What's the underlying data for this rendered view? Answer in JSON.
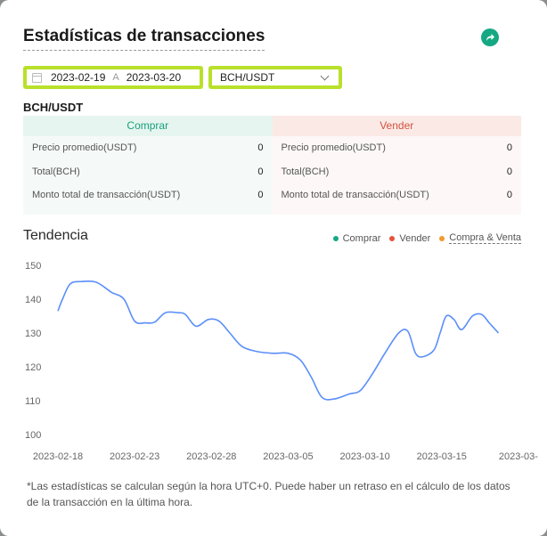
{
  "title": "Estadísticas de transacciones",
  "filters": {
    "date_from": "2023-02-19",
    "date_sep": "A",
    "date_to": "2023-03-20",
    "pair": "BCH/USDT"
  },
  "pair_heading": "BCH/USDT",
  "buy": {
    "header": "Comprar",
    "rows": [
      {
        "label": "Precio promedio(USDT)",
        "value": "0"
      },
      {
        "label": "Total(BCH)",
        "value": "0"
      },
      {
        "label": "Monto total de transacción(USDT)",
        "value": "0"
      }
    ]
  },
  "sell": {
    "header": "Vender",
    "rows": [
      {
        "label": "Precio promedio(USDT)",
        "value": "0"
      },
      {
        "label": "Total(BCH)",
        "value": "0"
      },
      {
        "label": "Monto total de transacción(USDT)",
        "value": "0"
      }
    ]
  },
  "trend": {
    "title": "Tendencia",
    "legend": [
      {
        "label": "Comprar",
        "color": "#16a883"
      },
      {
        "label": "Vender",
        "color": "#e5533d"
      },
      {
        "label": "Compra & Venta",
        "color": "#f29a2e"
      }
    ]
  },
  "chart_data": {
    "type": "line",
    "title": "Tendencia",
    "ylim": [
      100,
      150
    ],
    "y_ticks": [
      100,
      110,
      120,
      130,
      140,
      150
    ],
    "x_tick_labels": [
      "2023-02-18",
      "2023-02-23",
      "2023-02-28",
      "2023-03-05",
      "2023-03-10",
      "2023-03-15",
      "2023-03-"
    ],
    "x_tick_positions": [
      0,
      5,
      10,
      15,
      20,
      25,
      30
    ],
    "grid": false,
    "line_color": "#5b8ff9",
    "x": [
      0,
      0.3,
      0.8,
      1.5,
      2.5,
      3.5,
      4.3,
      5,
      5.7,
      6.3,
      7,
      7.8,
      8.3,
      9,
      9.8,
      10.5,
      11.2,
      12,
      13,
      14,
      15,
      15.8,
      16.5,
      17.2,
      18,
      19,
      19.7,
      20.5,
      21.3,
      22.2,
      22.8,
      23.3,
      23.8,
      24.5,
      24.9,
      25.3,
      25.8,
      26.3,
      27,
      27.6,
      28.1,
      28.7
    ],
    "values": [
      136.5,
      140,
      144.5,
      145.2,
      145,
      142,
      140,
      133.5,
      133,
      133.2,
      136,
      136,
      135.5,
      132,
      134,
      133.5,
      130,
      126,
      124.5,
      124,
      124,
      122,
      117,
      111,
      110.5,
      112,
      113,
      118,
      124,
      130,
      130.5,
      124,
      123,
      125,
      130,
      135,
      134,
      131,
      135,
      135.5,
      133,
      130
    ]
  },
  "note": "*Las estadísticas se calculan según la hora UTC+0. Puede haber un retraso en el cálculo de los datos de la transacción en la última hora."
}
